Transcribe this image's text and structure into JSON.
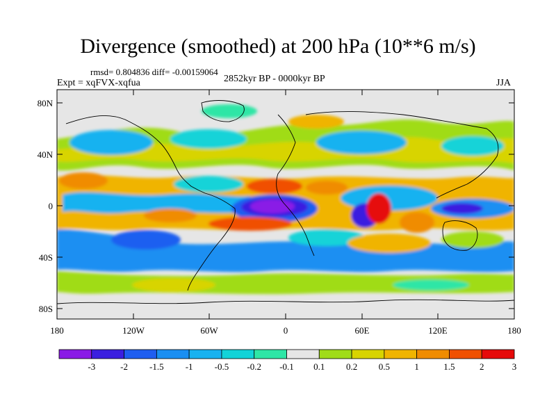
{
  "title": "Divergence (smoothed) at 200 hPa (10**6 m/s)",
  "stats": "rmsd= 0.804836 diff= -0.00159064",
  "experiment": "Expt = xqFVX-xqfua",
  "period": "2852kyr BP - 0000kyr BP",
  "season": "JJA",
  "lat_ticks": [
    "80N",
    "40N",
    "0",
    "40S",
    "80S"
  ],
  "lon_ticks": [
    "180",
    "120W",
    "60W",
    "0",
    "60E",
    "120E",
    "180"
  ],
  "colorbar": {
    "labels": [
      "-3",
      "-2",
      "-1.5",
      "-1",
      "-0.5",
      "-0.2",
      "-0.1",
      "0.1",
      "0.2",
      "0.5",
      "1",
      "1.5",
      "2",
      "3"
    ],
    "colors": [
      "#8a1ae6",
      "#3b1fe0",
      "#1f5ef0",
      "#1a8ff2",
      "#19b2f0",
      "#12d3d8",
      "#2ee6a6",
      "#e6e6e6",
      "#a0dc19",
      "#d8d400",
      "#f0b400",
      "#f08c00",
      "#f05000",
      "#e60a0a"
    ]
  }
}
